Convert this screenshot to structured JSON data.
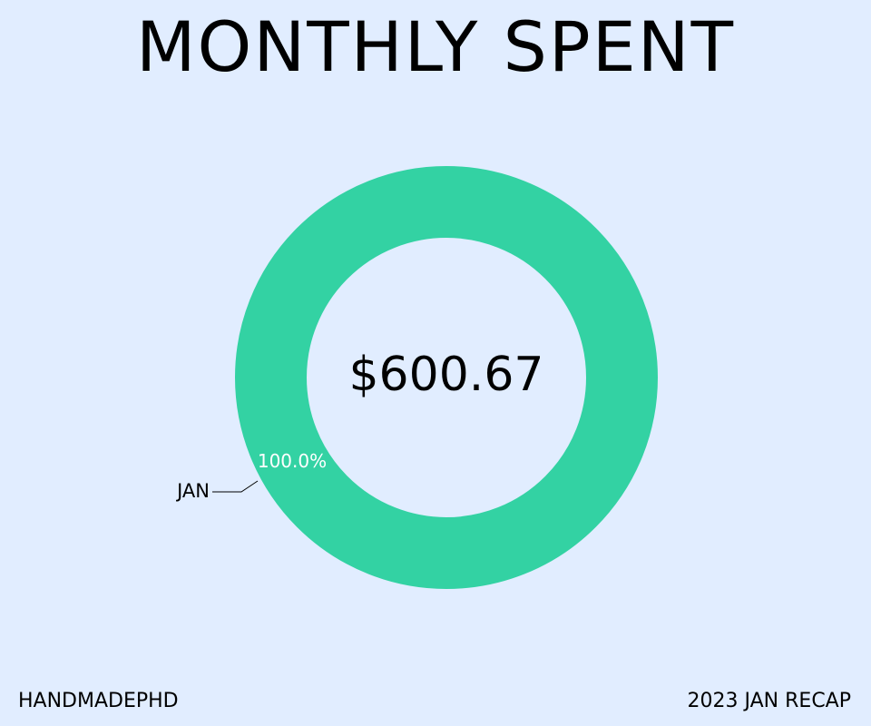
{
  "title": "MONTHLY SPENT",
  "footer": {
    "left": "HANDMADEPHD",
    "right": "2023 JAN RECAP"
  },
  "chart_data": {
    "type": "pie",
    "style": "donut",
    "center_label": "$600.67",
    "categories": [
      "JAN"
    ],
    "values": [
      100.0
    ],
    "value_labels": [
      "100.0%"
    ],
    "colors": [
      "#33d2a3"
    ],
    "label_color": "#ffffff"
  }
}
